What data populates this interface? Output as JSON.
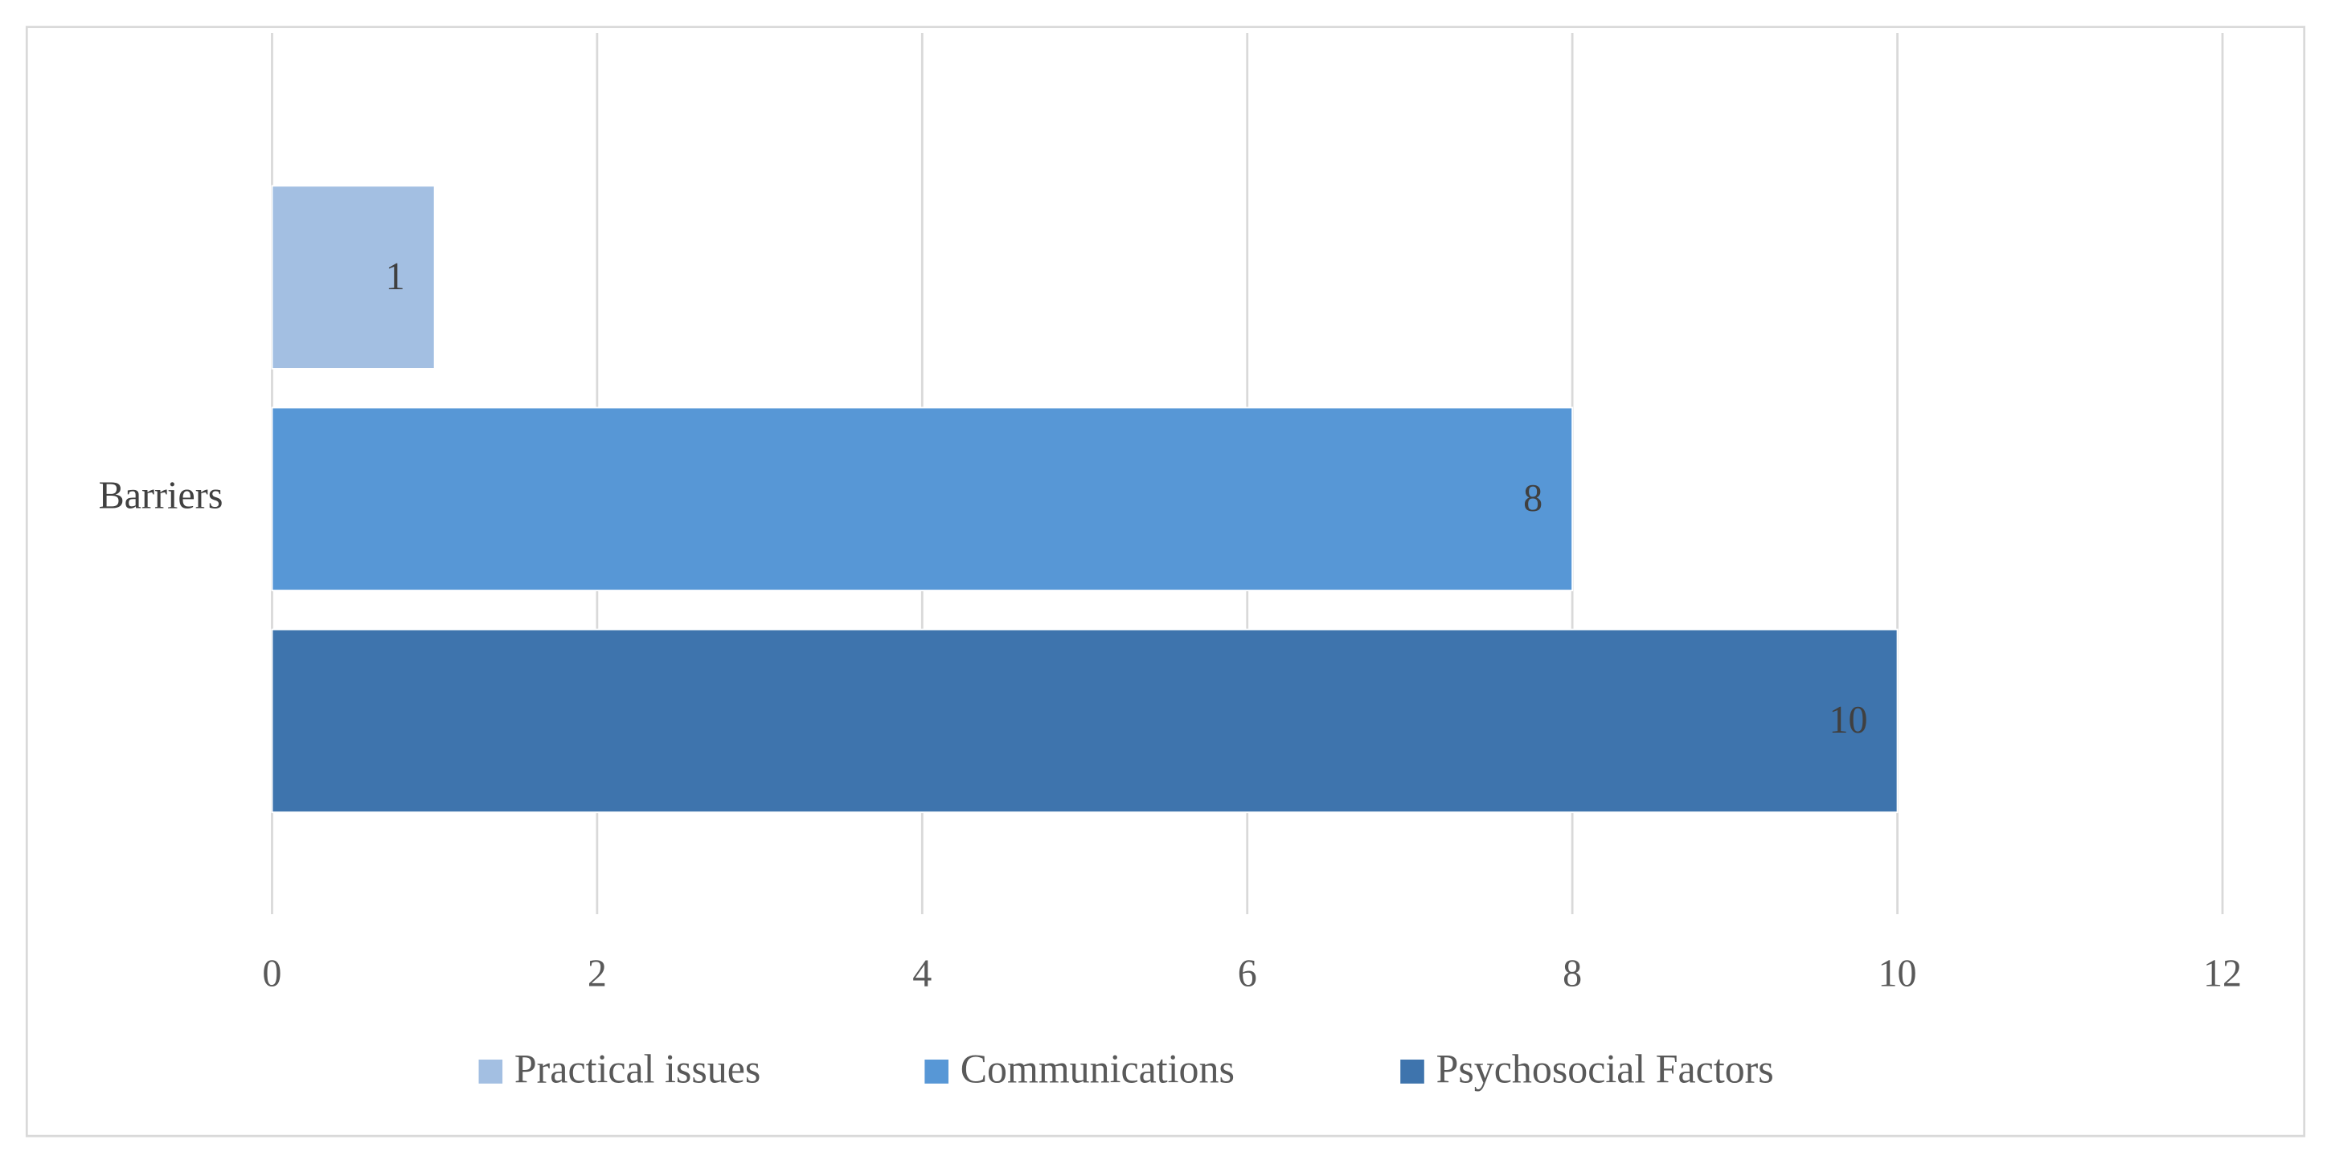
{
  "chart_data": {
    "type": "bar",
    "orientation": "horizontal",
    "categories": [
      "Barriers"
    ],
    "series": [
      {
        "name": "Practical issues",
        "color": "#a3bfe2",
        "values": [
          1
        ]
      },
      {
        "name": "Communications",
        "color": "#5797d6",
        "values": [
          8
        ]
      },
      {
        "name": "Psychosocial Factors",
        "color": "#3e74ad",
        "values": [
          10
        ]
      }
    ],
    "xlim": [
      0,
      12
    ],
    "xticks": [
      0,
      2,
      4,
      6,
      8,
      10,
      12
    ],
    "grid": true,
    "legend": "bottom"
  }
}
